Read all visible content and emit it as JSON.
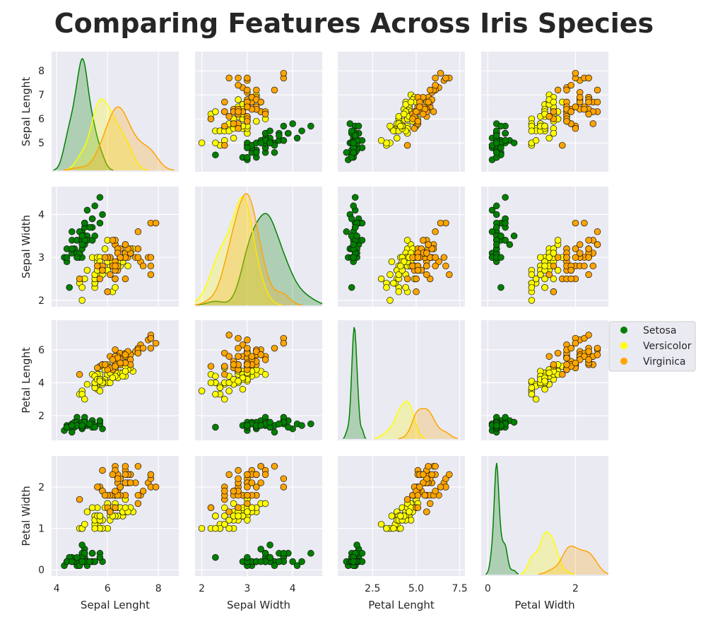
{
  "chart_data": {
    "type": "scatter",
    "title": "Comparing Features Across Iris Species",
    "variables": [
      "Sepal Lenght",
      "Sepal Width",
      "Petal Lenght",
      "Petal Width"
    ],
    "ranges": [
      [
        3.8,
        8.8
      ],
      [
        1.85,
        4.65
      ],
      [
        0.5,
        7.8
      ],
      [
        -0.15,
        2.75
      ]
    ],
    "ticks": [
      [
        4,
        6,
        8
      ],
      [
        2,
        3,
        4
      ],
      [
        2.5,
        5.0,
        7.5
      ],
      [
        0,
        2
      ]
    ],
    "tick_labels": [
      [
        "4",
        "6",
        "8"
      ],
      [
        "2",
        "3",
        "4"
      ],
      [
        "2.5",
        "5.0",
        "7.5"
      ],
      [
        "0",
        "2"
      ]
    ],
    "y_ticks": [
      [
        5,
        6,
        7,
        8
      ],
      [
        2,
        3,
        4
      ],
      [
        2,
        4,
        6
      ],
      [
        0,
        1,
        2
      ]
    ],
    "y_tick_labels": [
      [
        "5",
        "6",
        "7",
        "8"
      ],
      [
        "2",
        "3",
        "4"
      ],
      [
        "2",
        "4",
        "6"
      ],
      [
        "0",
        "1",
        "2"
      ]
    ],
    "diagonal": "kde",
    "grid": true,
    "legend_position": "right",
    "species": [
      {
        "name": "Setosa",
        "color": "#008000",
        "points": [
          [
            5.1,
            3.5,
            1.4,
            0.2
          ],
          [
            4.9,
            3.0,
            1.4,
            0.2
          ],
          [
            4.7,
            3.2,
            1.3,
            0.2
          ],
          [
            4.6,
            3.1,
            1.5,
            0.2
          ],
          [
            5.0,
            3.6,
            1.4,
            0.2
          ],
          [
            5.4,
            3.9,
            1.7,
            0.4
          ],
          [
            4.6,
            3.4,
            1.4,
            0.3
          ],
          [
            5.0,
            3.4,
            1.5,
            0.2
          ],
          [
            4.4,
            2.9,
            1.4,
            0.2
          ],
          [
            4.9,
            3.1,
            1.5,
            0.1
          ],
          [
            5.4,
            3.7,
            1.5,
            0.2
          ],
          [
            4.8,
            3.4,
            1.6,
            0.2
          ],
          [
            4.8,
            3.0,
            1.4,
            0.1
          ],
          [
            4.3,
            3.0,
            1.1,
            0.1
          ],
          [
            5.8,
            4.0,
            1.2,
            0.2
          ],
          [
            5.7,
            4.4,
            1.5,
            0.4
          ],
          [
            5.4,
            3.9,
            1.3,
            0.4
          ],
          [
            5.1,
            3.5,
            1.4,
            0.3
          ],
          [
            5.7,
            3.8,
            1.7,
            0.3
          ],
          [
            5.1,
            3.8,
            1.5,
            0.3
          ],
          [
            5.4,
            3.4,
            1.7,
            0.2
          ],
          [
            5.1,
            3.7,
            1.5,
            0.4
          ],
          [
            4.6,
            3.6,
            1.0,
            0.2
          ],
          [
            5.1,
            3.3,
            1.7,
            0.5
          ],
          [
            4.8,
            3.4,
            1.9,
            0.2
          ],
          [
            5.0,
            3.0,
            1.6,
            0.2
          ],
          [
            5.0,
            3.4,
            1.6,
            0.4
          ],
          [
            5.2,
            3.5,
            1.5,
            0.2
          ],
          [
            5.2,
            3.4,
            1.4,
            0.2
          ],
          [
            4.7,
            3.2,
            1.6,
            0.2
          ],
          [
            4.8,
            3.1,
            1.6,
            0.2
          ],
          [
            5.4,
            3.4,
            1.5,
            0.4
          ],
          [
            5.2,
            4.1,
            1.5,
            0.1
          ],
          [
            5.5,
            4.2,
            1.4,
            0.2
          ],
          [
            4.9,
            3.1,
            1.5,
            0.2
          ],
          [
            5.0,
            3.2,
            1.2,
            0.2
          ],
          [
            5.5,
            3.5,
            1.3,
            0.2
          ],
          [
            4.9,
            3.6,
            1.4,
            0.1
          ],
          [
            4.4,
            3.0,
            1.3,
            0.2
          ],
          [
            5.1,
            3.4,
            1.5,
            0.2
          ],
          [
            5.0,
            3.5,
            1.3,
            0.3
          ],
          [
            4.5,
            2.3,
            1.3,
            0.3
          ],
          [
            4.4,
            3.2,
            1.3,
            0.2
          ],
          [
            5.0,
            3.5,
            1.6,
            0.6
          ],
          [
            5.1,
            3.8,
            1.9,
            0.4
          ],
          [
            4.8,
            3.0,
            1.4,
            0.3
          ],
          [
            5.1,
            3.8,
            1.6,
            0.2
          ],
          [
            4.6,
            3.2,
            1.4,
            0.2
          ],
          [
            5.3,
            3.7,
            1.5,
            0.2
          ],
          [
            5.0,
            3.3,
            1.4,
            0.2
          ]
        ]
      },
      {
        "name": "Versicolor",
        "color": "#ffff00",
        "points": [
          [
            7.0,
            3.2,
            4.7,
            1.4
          ],
          [
            6.4,
            3.2,
            4.5,
            1.5
          ],
          [
            6.9,
            3.1,
            4.9,
            1.5
          ],
          [
            5.5,
            2.3,
            4.0,
            1.3
          ],
          [
            6.5,
            2.8,
            4.6,
            1.5
          ],
          [
            5.7,
            2.8,
            4.5,
            1.3
          ],
          [
            6.3,
            3.3,
            4.7,
            1.6
          ],
          [
            4.9,
            2.4,
            3.3,
            1.0
          ],
          [
            6.6,
            2.9,
            4.6,
            1.3
          ],
          [
            5.2,
            2.7,
            3.9,
            1.4
          ],
          [
            5.0,
            2.0,
            3.5,
            1.0
          ],
          [
            5.9,
            3.0,
            4.2,
            1.5
          ],
          [
            6.0,
            2.2,
            4.0,
            1.0
          ],
          [
            6.1,
            2.9,
            4.7,
            1.4
          ],
          [
            5.6,
            2.9,
            3.6,
            1.3
          ],
          [
            6.7,
            3.1,
            4.4,
            1.4
          ],
          [
            5.6,
            3.0,
            4.5,
            1.5
          ],
          [
            5.8,
            2.7,
            4.1,
            1.0
          ],
          [
            6.2,
            2.2,
            4.5,
            1.5
          ],
          [
            5.6,
            2.5,
            3.9,
            1.1
          ],
          [
            5.9,
            3.2,
            4.8,
            1.8
          ],
          [
            6.1,
            2.8,
            4.0,
            1.3
          ],
          [
            6.3,
            2.5,
            4.9,
            1.5
          ],
          [
            6.1,
            2.8,
            4.7,
            1.2
          ],
          [
            6.4,
            2.9,
            4.3,
            1.3
          ],
          [
            6.6,
            3.0,
            4.4,
            1.4
          ],
          [
            6.8,
            2.8,
            4.8,
            1.4
          ],
          [
            6.7,
            3.0,
            5.0,
            1.7
          ],
          [
            6.0,
            2.9,
            4.5,
            1.5
          ],
          [
            5.7,
            2.6,
            3.5,
            1.0
          ],
          [
            5.5,
            2.4,
            3.8,
            1.1
          ],
          [
            5.5,
            2.4,
            3.7,
            1.0
          ],
          [
            5.8,
            2.7,
            3.9,
            1.2
          ],
          [
            6.0,
            2.7,
            5.1,
            1.6
          ],
          [
            5.4,
            3.0,
            4.5,
            1.5
          ],
          [
            6.0,
            3.4,
            4.5,
            1.6
          ],
          [
            6.7,
            3.1,
            4.7,
            1.5
          ],
          [
            6.3,
            2.3,
            4.4,
            1.3
          ],
          [
            5.6,
            3.0,
            4.1,
            1.3
          ],
          [
            5.5,
            2.5,
            4.0,
            1.3
          ],
          [
            5.5,
            2.6,
            4.4,
            1.2
          ],
          [
            6.1,
            3.0,
            4.6,
            1.4
          ],
          [
            5.8,
            2.6,
            4.0,
            1.2
          ],
          [
            5.0,
            2.3,
            3.3,
            1.0
          ],
          [
            5.6,
            2.7,
            4.2,
            1.3
          ],
          [
            5.7,
            3.0,
            4.2,
            1.2
          ],
          [
            5.7,
            2.9,
            4.2,
            1.3
          ],
          [
            6.2,
            2.9,
            4.3,
            1.3
          ],
          [
            5.1,
            2.5,
            3.0,
            1.1
          ],
          [
            5.7,
            2.8,
            4.1,
            1.3
          ]
        ]
      },
      {
        "name": "Virginica",
        "color": "#ffa500",
        "points": [
          [
            6.3,
            3.3,
            6.0,
            2.5
          ],
          [
            5.8,
            2.7,
            5.1,
            1.9
          ],
          [
            7.1,
            3.0,
            5.9,
            2.1
          ],
          [
            6.3,
            2.9,
            5.6,
            1.8
          ],
          [
            6.5,
            3.0,
            5.8,
            2.2
          ],
          [
            7.6,
            3.0,
            6.6,
            2.1
          ],
          [
            4.9,
            2.5,
            4.5,
            1.7
          ],
          [
            7.3,
            2.9,
            6.3,
            1.8
          ],
          [
            6.7,
            2.5,
            5.8,
            1.8
          ],
          [
            7.2,
            3.6,
            6.1,
            2.5
          ],
          [
            6.5,
            3.2,
            5.1,
            2.0
          ],
          [
            6.4,
            2.7,
            5.3,
            1.9
          ],
          [
            6.8,
            3.0,
            5.5,
            2.1
          ],
          [
            5.7,
            2.5,
            5.0,
            2.0
          ],
          [
            5.8,
            2.8,
            5.1,
            2.4
          ],
          [
            6.4,
            3.2,
            5.3,
            2.3
          ],
          [
            6.5,
            3.0,
            5.5,
            1.8
          ],
          [
            7.7,
            3.8,
            6.7,
            2.2
          ],
          [
            7.7,
            2.6,
            6.9,
            2.3
          ],
          [
            6.0,
            2.2,
            5.0,
            1.5
          ],
          [
            6.9,
            3.2,
            5.7,
            2.3
          ],
          [
            5.6,
            2.8,
            4.9,
            2.0
          ],
          [
            7.7,
            2.8,
            6.7,
            2.0
          ],
          [
            6.3,
            2.7,
            4.9,
            1.8
          ],
          [
            6.7,
            3.3,
            5.7,
            2.1
          ],
          [
            7.2,
            3.2,
            6.0,
            1.8
          ],
          [
            6.2,
            2.8,
            4.8,
            1.8
          ],
          [
            6.1,
            3.0,
            4.9,
            1.8
          ],
          [
            6.4,
            2.8,
            5.6,
            2.1
          ],
          [
            7.2,
            3.0,
            5.8,
            1.6
          ],
          [
            7.4,
            2.8,
            6.1,
            1.9
          ],
          [
            7.9,
            3.8,
            6.4,
            2.0
          ],
          [
            6.4,
            2.8,
            5.6,
            2.2
          ],
          [
            6.3,
            2.8,
            5.1,
            1.5
          ],
          [
            6.1,
            2.6,
            5.6,
            1.4
          ],
          [
            7.7,
            3.0,
            6.1,
            2.3
          ],
          [
            6.3,
            3.4,
            5.6,
            2.4
          ],
          [
            6.4,
            3.1,
            5.5,
            1.8
          ],
          [
            6.0,
            3.0,
            4.8,
            1.8
          ],
          [
            6.9,
            3.1,
            5.4,
            2.1
          ],
          [
            6.7,
            3.1,
            5.6,
            2.4
          ],
          [
            6.9,
            3.1,
            5.1,
            2.3
          ],
          [
            5.8,
            2.7,
            5.1,
            1.9
          ],
          [
            6.8,
            3.2,
            5.9,
            2.3
          ],
          [
            6.7,
            3.3,
            5.7,
            2.5
          ],
          [
            6.7,
            3.0,
            5.2,
            2.3
          ],
          [
            6.3,
            2.5,
            5.0,
            1.9
          ],
          [
            6.5,
            3.0,
            5.2,
            2.0
          ],
          [
            6.2,
            3.4,
            5.4,
            2.3
          ],
          [
            5.9,
            3.0,
            5.1,
            1.8
          ]
        ]
      }
    ]
  }
}
